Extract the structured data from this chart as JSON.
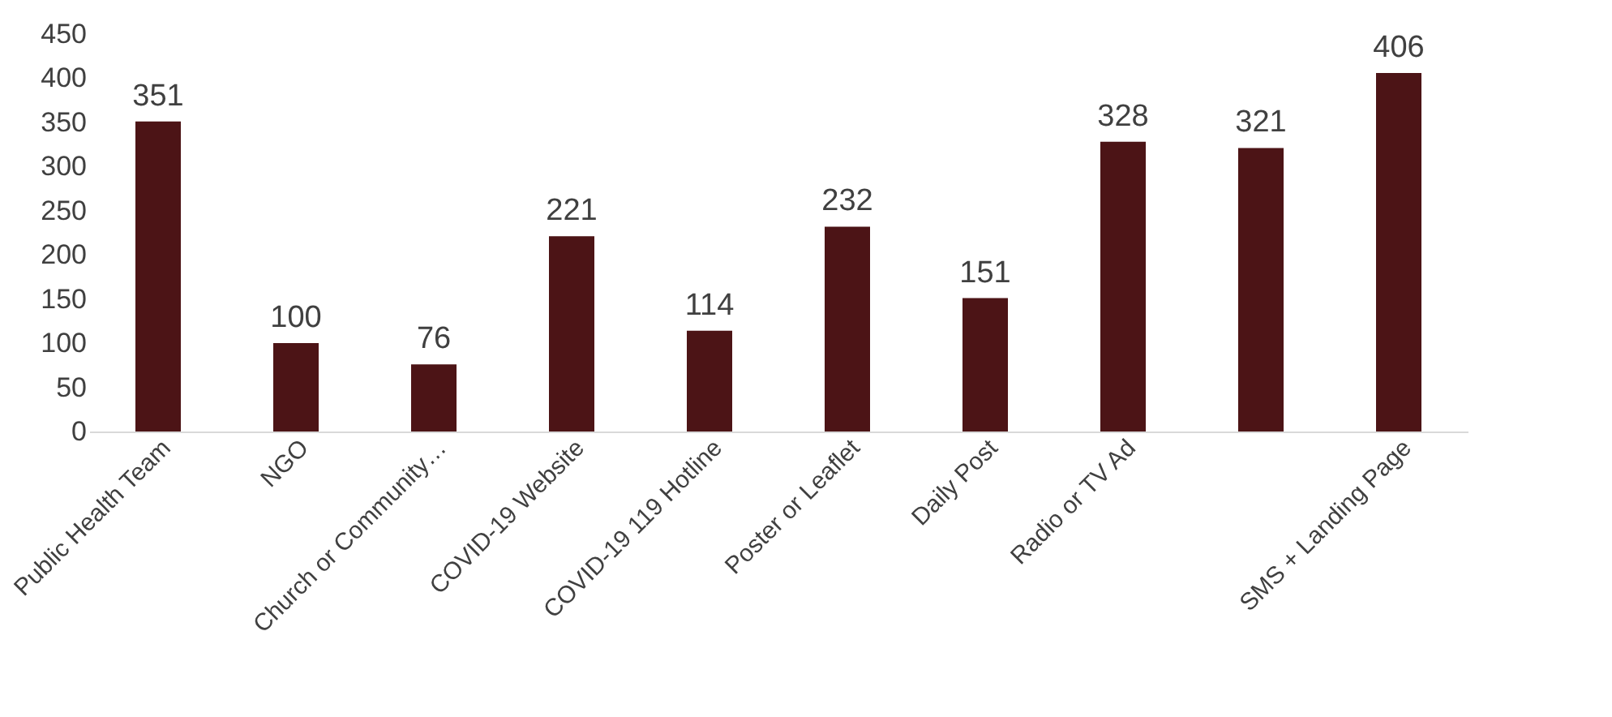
{
  "chart_data": {
    "type": "bar",
    "categories": [
      "Public Health Team",
      "NGO",
      "Church or Community…",
      "COVID-19 Website",
      "COVID-19 119 Hotline",
      "Poster or Leaflet",
      "Daily Post",
      "Radio or TV Ad",
      null,
      "SMS + Landing Page"
    ],
    "values": [
      351,
      100,
      76,
      221,
      114,
      232,
      151,
      328,
      321,
      406
    ],
    "color": "#4c1416",
    "ylim": [
      0,
      450
    ],
    "yticks": [
      0,
      50,
      100,
      150,
      200,
      250,
      300,
      350,
      400,
      450
    ],
    "data_labels": true,
    "grid": false
  }
}
